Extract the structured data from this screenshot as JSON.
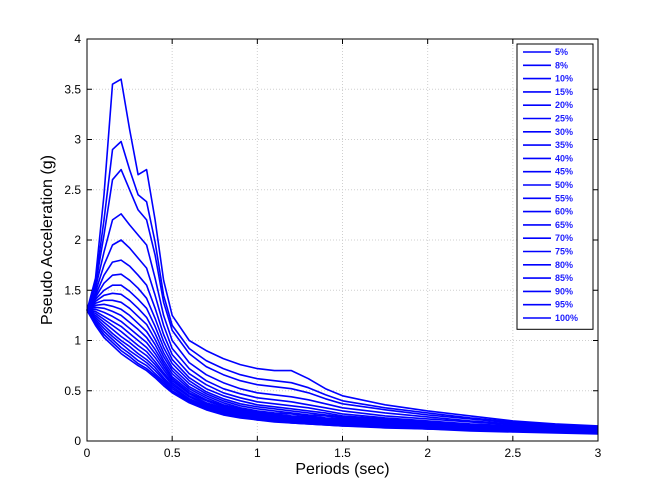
{
  "chart_data": {
    "type": "line",
    "title": "",
    "xlabel": "Periods (sec)",
    "ylabel": "Pseudo Acceleration (g)",
    "xlim": [
      0,
      3
    ],
    "ylim": [
      0,
      4
    ],
    "xticks": [
      0,
      0.5,
      1,
      1.5,
      2,
      2.5,
      3
    ],
    "xtick_labels": [
      "0",
      "0.5",
      "1",
      "1.5",
      "2",
      "2.5",
      "3"
    ],
    "yticks": [
      0,
      0.5,
      1,
      1.5,
      2,
      2.5,
      3,
      3.5,
      4
    ],
    "ytick_labels": [
      "0",
      "0.5",
      "1",
      "1.5",
      "2",
      "2.5",
      "3",
      "3.5",
      "4"
    ],
    "grid": true,
    "legend_position": "top-right",
    "line_color": "#0000ff",
    "x": [
      0,
      0.05,
      0.1,
      0.15,
      0.2,
      0.25,
      0.3,
      0.35,
      0.4,
      0.45,
      0.5,
      0.6,
      0.7,
      0.8,
      0.9,
      1.0,
      1.1,
      1.2,
      1.3,
      1.4,
      1.5,
      1.75,
      2.0,
      2.25,
      2.5,
      2.75,
      3.0
    ],
    "series": [
      {
        "name": "5%",
        "values": [
          1.3,
          1.62,
          2.45,
          3.55,
          3.6,
          3.1,
          2.65,
          2.7,
          2.2,
          1.6,
          1.25,
          1.0,
          0.9,
          0.82,
          0.76,
          0.72,
          0.7,
          0.7,
          0.62,
          0.52,
          0.45,
          0.36,
          0.3,
          0.25,
          0.2,
          0.17,
          0.15
        ]
      },
      {
        "name": "8%",
        "values": [
          1.3,
          1.58,
          2.2,
          2.9,
          2.98,
          2.7,
          2.45,
          2.38,
          1.98,
          1.45,
          1.15,
          0.92,
          0.8,
          0.72,
          0.66,
          0.62,
          0.6,
          0.58,
          0.53,
          0.46,
          0.4,
          0.33,
          0.28,
          0.23,
          0.19,
          0.16,
          0.14
        ]
      },
      {
        "name": "10%",
        "values": [
          1.3,
          1.55,
          2.05,
          2.6,
          2.7,
          2.5,
          2.3,
          2.2,
          1.85,
          1.38,
          1.1,
          0.87,
          0.74,
          0.66,
          0.6,
          0.56,
          0.54,
          0.52,
          0.48,
          0.42,
          0.37,
          0.31,
          0.26,
          0.22,
          0.18,
          0.15,
          0.13
        ]
      },
      {
        "name": "15%",
        "values": [
          1.3,
          1.52,
          1.88,
          2.2,
          2.26,
          2.15,
          2.05,
          1.95,
          1.62,
          1.25,
          1.0,
          0.78,
          0.66,
          0.58,
          0.52,
          0.48,
          0.46,
          0.44,
          0.41,
          0.37,
          0.33,
          0.28,
          0.24,
          0.2,
          0.17,
          0.14,
          0.12
        ]
      },
      {
        "name": "20%",
        "values": [
          1.3,
          1.48,
          1.75,
          1.95,
          2.0,
          1.92,
          1.82,
          1.72,
          1.45,
          1.15,
          0.92,
          0.72,
          0.6,
          0.52,
          0.47,
          0.43,
          0.41,
          0.39,
          0.36,
          0.33,
          0.3,
          0.25,
          0.22,
          0.19,
          0.16,
          0.14,
          0.12
        ]
      },
      {
        "name": "25%",
        "values": [
          1.3,
          1.45,
          1.65,
          1.78,
          1.8,
          1.74,
          1.65,
          1.55,
          1.32,
          1.06,
          0.86,
          0.67,
          0.56,
          0.48,
          0.43,
          0.39,
          0.37,
          0.35,
          0.33,
          0.3,
          0.27,
          0.23,
          0.2,
          0.17,
          0.15,
          0.13,
          0.11
        ]
      },
      {
        "name": "30%",
        "values": [
          1.3,
          1.43,
          1.57,
          1.65,
          1.66,
          1.6,
          1.52,
          1.42,
          1.22,
          0.99,
          0.81,
          0.63,
          0.52,
          0.45,
          0.4,
          0.36,
          0.34,
          0.32,
          0.3,
          0.28,
          0.25,
          0.22,
          0.19,
          0.16,
          0.14,
          0.12,
          0.11
        ]
      },
      {
        "name": "35%",
        "values": [
          1.3,
          1.41,
          1.5,
          1.55,
          1.55,
          1.49,
          1.41,
          1.32,
          1.14,
          0.93,
          0.77,
          0.6,
          0.49,
          0.42,
          0.37,
          0.34,
          0.32,
          0.3,
          0.28,
          0.26,
          0.24,
          0.21,
          0.18,
          0.16,
          0.14,
          0.12,
          0.1
        ]
      },
      {
        "name": "40%",
        "values": [
          1.3,
          1.39,
          1.45,
          1.47,
          1.46,
          1.4,
          1.32,
          1.23,
          1.07,
          0.88,
          0.73,
          0.57,
          0.47,
          0.4,
          0.35,
          0.32,
          0.3,
          0.28,
          0.26,
          0.25,
          0.23,
          0.2,
          0.17,
          0.15,
          0.13,
          0.12,
          0.1
        ]
      },
      {
        "name": "45%",
        "values": [
          1.3,
          1.37,
          1.4,
          1.4,
          1.38,
          1.32,
          1.24,
          1.16,
          1.01,
          0.84,
          0.7,
          0.54,
          0.45,
          0.38,
          0.33,
          0.3,
          0.28,
          0.27,
          0.25,
          0.23,
          0.22,
          0.19,
          0.17,
          0.14,
          0.13,
          0.11,
          0.1
        ]
      },
      {
        "name": "50%",
        "values": [
          1.3,
          1.35,
          1.36,
          1.34,
          1.31,
          1.25,
          1.17,
          1.09,
          0.96,
          0.8,
          0.67,
          0.52,
          0.43,
          0.36,
          0.32,
          0.29,
          0.27,
          0.25,
          0.24,
          0.22,
          0.21,
          0.18,
          0.16,
          0.14,
          0.12,
          0.11,
          0.1
        ]
      },
      {
        "name": "55%",
        "values": [
          1.3,
          1.33,
          1.32,
          1.29,
          1.25,
          1.18,
          1.11,
          1.03,
          0.91,
          0.77,
          0.64,
          0.5,
          0.41,
          0.35,
          0.31,
          0.28,
          0.26,
          0.24,
          0.23,
          0.21,
          0.2,
          0.18,
          0.15,
          0.13,
          0.12,
          0.1,
          0.09
        ]
      },
      {
        "name": "60%",
        "values": [
          1.3,
          1.31,
          1.28,
          1.24,
          1.19,
          1.12,
          1.05,
          0.98,
          0.87,
          0.74,
          0.62,
          0.48,
          0.4,
          0.34,
          0.3,
          0.27,
          0.25,
          0.23,
          0.22,
          0.2,
          0.19,
          0.17,
          0.15,
          0.13,
          0.12,
          0.1,
          0.09
        ]
      },
      {
        "name": "65%",
        "values": [
          1.3,
          1.29,
          1.24,
          1.19,
          1.14,
          1.07,
          1.0,
          0.93,
          0.83,
          0.71,
          0.6,
          0.47,
          0.38,
          0.33,
          0.29,
          0.26,
          0.24,
          0.22,
          0.21,
          0.19,
          0.18,
          0.16,
          0.14,
          0.12,
          0.11,
          0.1,
          0.09
        ]
      },
      {
        "name": "70%",
        "values": [
          1.3,
          1.27,
          1.21,
          1.15,
          1.09,
          1.02,
          0.95,
          0.89,
          0.79,
          0.68,
          0.58,
          0.45,
          0.37,
          0.32,
          0.28,
          0.25,
          0.23,
          0.21,
          0.2,
          0.19,
          0.18,
          0.16,
          0.14,
          0.12,
          0.11,
          0.1,
          0.09
        ]
      },
      {
        "name": "75%",
        "values": [
          1.3,
          1.25,
          1.18,
          1.11,
          1.04,
          0.98,
          0.91,
          0.85,
          0.76,
          0.66,
          0.56,
          0.44,
          0.36,
          0.31,
          0.27,
          0.24,
          0.22,
          0.21,
          0.19,
          0.18,
          0.17,
          0.15,
          0.13,
          0.12,
          0.11,
          0.09,
          0.08
        ]
      },
      {
        "name": "80%",
        "values": [
          1.3,
          1.23,
          1.15,
          1.07,
          1.0,
          0.94,
          0.87,
          0.81,
          0.73,
          0.63,
          0.54,
          0.42,
          0.35,
          0.3,
          0.26,
          0.23,
          0.21,
          0.2,
          0.19,
          0.18,
          0.17,
          0.15,
          0.13,
          0.11,
          0.1,
          0.09,
          0.08
        ]
      },
      {
        "name": "85%",
        "values": [
          1.3,
          1.21,
          1.12,
          1.04,
          0.97,
          0.9,
          0.84,
          0.78,
          0.7,
          0.61,
          0.52,
          0.41,
          0.34,
          0.29,
          0.25,
          0.23,
          0.21,
          0.19,
          0.18,
          0.17,
          0.16,
          0.14,
          0.13,
          0.11,
          0.1,
          0.09,
          0.08
        ]
      },
      {
        "name": "90%",
        "values": [
          1.3,
          1.19,
          1.09,
          1.01,
          0.93,
          0.87,
          0.8,
          0.75,
          0.67,
          0.59,
          0.5,
          0.4,
          0.33,
          0.28,
          0.25,
          0.22,
          0.2,
          0.19,
          0.18,
          0.17,
          0.16,
          0.14,
          0.12,
          0.11,
          0.1,
          0.09,
          0.08
        ]
      },
      {
        "name": "95%",
        "values": [
          1.3,
          1.17,
          1.06,
          0.98,
          0.9,
          0.84,
          0.77,
          0.72,
          0.65,
          0.57,
          0.49,
          0.39,
          0.32,
          0.27,
          0.24,
          0.21,
          0.2,
          0.18,
          0.17,
          0.16,
          0.15,
          0.14,
          0.12,
          0.11,
          0.1,
          0.09,
          0.08
        ]
      },
      {
        "name": "100%",
        "values": [
          1.3,
          1.15,
          1.03,
          0.95,
          0.87,
          0.81,
          0.75,
          0.7,
          0.63,
          0.55,
          0.48,
          0.38,
          0.31,
          0.26,
          0.23,
          0.21,
          0.19,
          0.18,
          0.17,
          0.16,
          0.15,
          0.13,
          0.12,
          0.1,
          0.09,
          0.08,
          0.07
        ]
      }
    ]
  }
}
